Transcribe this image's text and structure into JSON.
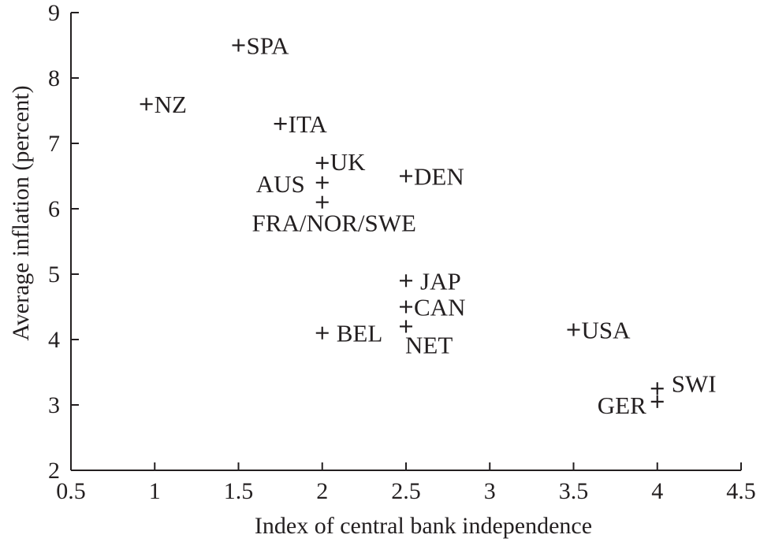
{
  "chart_data": {
    "type": "scatter",
    "xlabel": "Index of central bank independence",
    "ylabel": "Average inflation (percent)",
    "xlim": [
      0.5,
      4.5
    ],
    "ylim": [
      2,
      9
    ],
    "xticks": [
      "0.5",
      "1",
      "1.5",
      "2",
      "2.5",
      "3",
      "3.5",
      "4",
      "4.5"
    ],
    "yticks": [
      "2",
      "3",
      "4",
      "5",
      "6",
      "7",
      "8",
      "9"
    ],
    "grid": false,
    "legend": "none",
    "marker": "+",
    "points": [
      {
        "label": "SPA",
        "x": 1.5,
        "y": 8.5
      },
      {
        "label": "NZ",
        "x": 0.95,
        "y": 7.6
      },
      {
        "label": "ITA",
        "x": 1.75,
        "y": 7.3
      },
      {
        "label": "UK",
        "x": 2.0,
        "y": 6.7
      },
      {
        "label": "AUS",
        "x": 2.0,
        "y": 6.4
      },
      {
        "label": "FRA/NOR/SWE",
        "x": 2.0,
        "y": 6.1
      },
      {
        "label": "DEN",
        "x": 2.5,
        "y": 6.5
      },
      {
        "label": "JAP",
        "x": 2.5,
        "y": 4.9
      },
      {
        "label": "CAN",
        "x": 2.5,
        "y": 4.5
      },
      {
        "label": "NET",
        "x": 2.5,
        "y": 4.2
      },
      {
        "label": "BEL",
        "x": 2.0,
        "y": 4.1
      },
      {
        "label": "USA",
        "x": 3.5,
        "y": 4.15
      },
      {
        "label": "SWI",
        "x": 4.0,
        "y": 3.25
      },
      {
        "label": "GER",
        "x": 4.0,
        "y": 3.05
      }
    ]
  }
}
